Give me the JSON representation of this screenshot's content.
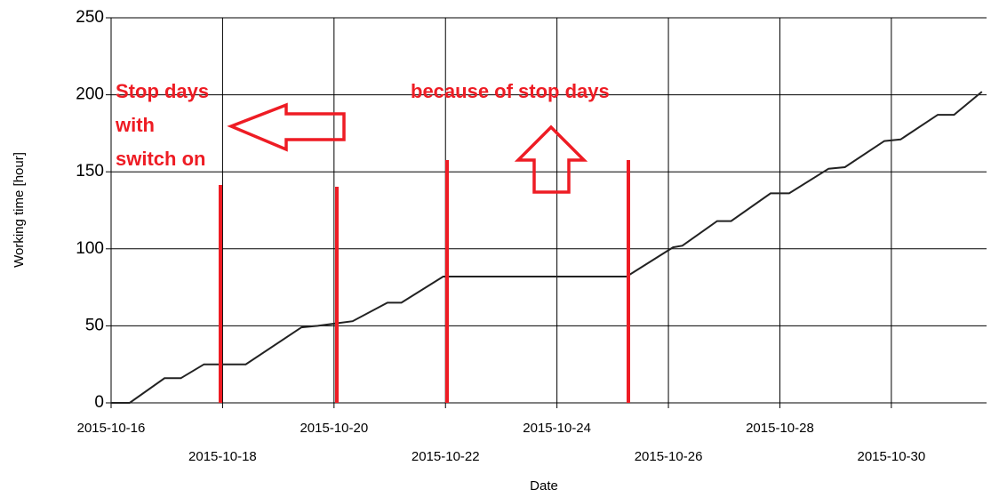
{
  "chart_data": {
    "type": "line",
    "x_label": "Date",
    "y_label": "Working time [hour]",
    "annotations": [
      [
        "Stop days",
        "with",
        "switch on"
      ],
      [
        "because of stop days"
      ]
    ],
    "x": [
      "2015-10-16T00:00",
      "2015-10-16T08:00",
      "2015-10-16T23:00",
      "2015-10-17T06:00",
      "2015-10-17T16:00",
      "2015-10-18T10:00",
      "2015-10-19T10:00",
      "2015-10-19T17:00",
      "2015-10-20T08:00",
      "2015-10-20T23:00",
      "2015-10-21T05:00",
      "2015-10-21T23:00",
      "2015-10-25T06:00",
      "2015-10-26T02:00",
      "2015-10-26T06:00",
      "2015-10-26T21:00",
      "2015-10-27T03:00",
      "2015-10-27T20:00",
      "2015-10-28T04:00",
      "2015-10-28T21:00",
      "2015-10-29T04:00",
      "2015-10-29T21:00",
      "2015-10-30T04:00",
      "2015-10-30T20:00",
      "2015-10-31T03:00",
      "2015-10-31T15:00"
    ],
    "series": [
      {
        "color": "#222222",
        "values": [
          0,
          0,
          16,
          16,
          25,
          25,
          49,
          50,
          53,
          65,
          65,
          82,
          82,
          101,
          102,
          118,
          118,
          136,
          136,
          152,
          153,
          170,
          171,
          187,
          187,
          202
        ]
      }
    ],
    "xlim": [
      "2015-10-16T00:00",
      "2015-10-31T17:00"
    ],
    "xticks": [
      "2015-10-16",
      "2015-10-18",
      "2015-10-20",
      "2015-10-22",
      "2015-10-24",
      "2015-10-26",
      "2015-10-28",
      "2015-10-30"
    ],
    "ylim": [
      0,
      250
    ],
    "yticks": [
      0,
      50,
      100,
      150,
      200,
      250
    ],
    "grid": true
  }
}
